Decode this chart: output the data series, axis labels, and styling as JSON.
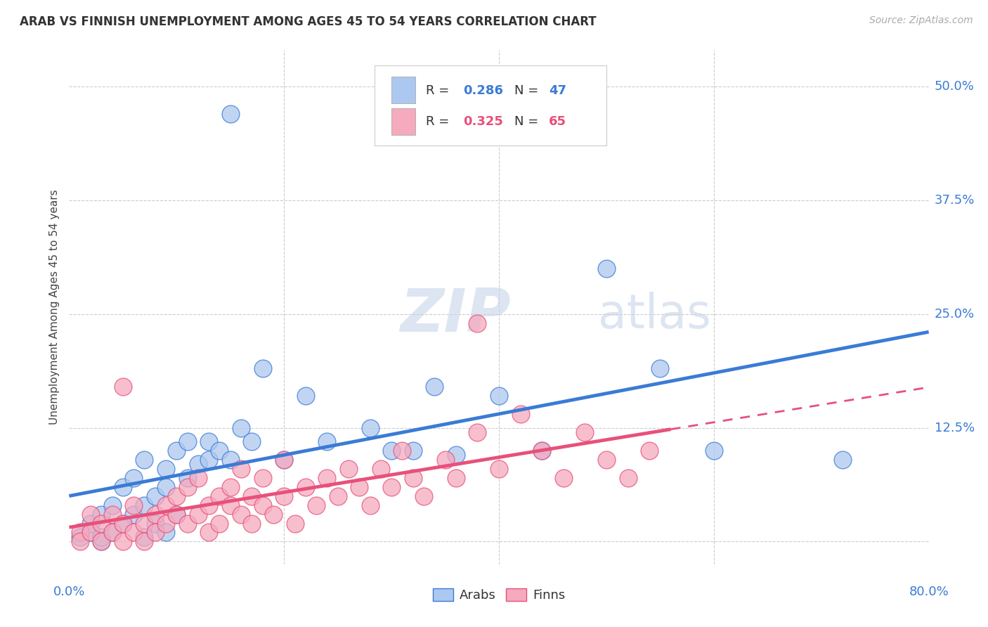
{
  "title": "ARAB VS FINNISH UNEMPLOYMENT AMONG AGES 45 TO 54 YEARS CORRELATION CHART",
  "source": "Source: ZipAtlas.com",
  "ylabel": "Unemployment Among Ages 45 to 54 years",
  "xlim": [
    0.0,
    0.8
  ],
  "ylim": [
    -0.025,
    0.54
  ],
  "arab_R": "0.286",
  "arab_N": "47",
  "finn_R": "0.325",
  "finn_N": "65",
  "arab_color": "#adc8f0",
  "finn_color": "#f5aabe",
  "arab_line_color": "#3a7bd5",
  "finn_line_color": "#e8507a",
  "background_color": "#ffffff",
  "watermark_zip": "ZIP",
  "watermark_atlas": "atlas",
  "arab_points_x": [
    0.01,
    0.02,
    0.02,
    0.03,
    0.03,
    0.03,
    0.04,
    0.04,
    0.05,
    0.05,
    0.06,
    0.06,
    0.07,
    0.07,
    0.07,
    0.08,
    0.08,
    0.09,
    0.09,
    0.09,
    0.1,
    0.1,
    0.11,
    0.11,
    0.12,
    0.13,
    0.13,
    0.14,
    0.15,
    0.16,
    0.17,
    0.18,
    0.2,
    0.22,
    0.24,
    0.28,
    0.3,
    0.32,
    0.34,
    0.36,
    0.4,
    0.44,
    0.5,
    0.55,
    0.6,
    0.72,
    0.15
  ],
  "arab_points_y": [
    0.005,
    0.01,
    0.02,
    0.0,
    0.03,
    0.005,
    0.04,
    0.01,
    0.02,
    0.06,
    0.03,
    0.07,
    0.005,
    0.04,
    0.09,
    0.05,
    0.02,
    0.06,
    0.08,
    0.01,
    0.1,
    0.03,
    0.07,
    0.11,
    0.085,
    0.09,
    0.11,
    0.1,
    0.09,
    0.125,
    0.11,
    0.19,
    0.09,
    0.16,
    0.11,
    0.125,
    0.1,
    0.1,
    0.17,
    0.095,
    0.16,
    0.1,
    0.3,
    0.19,
    0.1,
    0.09,
    0.47
  ],
  "finn_points_x": [
    0.01,
    0.01,
    0.02,
    0.02,
    0.03,
    0.03,
    0.04,
    0.04,
    0.05,
    0.05,
    0.06,
    0.06,
    0.07,
    0.07,
    0.08,
    0.08,
    0.09,
    0.09,
    0.1,
    0.1,
    0.11,
    0.11,
    0.12,
    0.12,
    0.13,
    0.13,
    0.14,
    0.14,
    0.15,
    0.15,
    0.16,
    0.16,
    0.17,
    0.17,
    0.18,
    0.18,
    0.19,
    0.2,
    0.2,
    0.21,
    0.22,
    0.23,
    0.24,
    0.25,
    0.26,
    0.27,
    0.28,
    0.29,
    0.3,
    0.31,
    0.32,
    0.33,
    0.35,
    0.36,
    0.38,
    0.4,
    0.42,
    0.44,
    0.46,
    0.48,
    0.5,
    0.52,
    0.54,
    0.38,
    0.05
  ],
  "finn_points_y": [
    0.01,
    0.0,
    0.01,
    0.03,
    0.02,
    0.0,
    0.01,
    0.03,
    0.0,
    0.02,
    0.01,
    0.04,
    0.02,
    0.0,
    0.03,
    0.01,
    0.04,
    0.02,
    0.03,
    0.05,
    0.02,
    0.06,
    0.03,
    0.07,
    0.04,
    0.01,
    0.05,
    0.02,
    0.04,
    0.06,
    0.03,
    0.08,
    0.05,
    0.02,
    0.04,
    0.07,
    0.03,
    0.09,
    0.05,
    0.02,
    0.06,
    0.04,
    0.07,
    0.05,
    0.08,
    0.06,
    0.04,
    0.08,
    0.06,
    0.1,
    0.07,
    0.05,
    0.09,
    0.07,
    0.12,
    0.08,
    0.14,
    0.1,
    0.07,
    0.12,
    0.09,
    0.07,
    0.1,
    0.24,
    0.17
  ],
  "ytick_vals": [
    0.0,
    0.125,
    0.25,
    0.375,
    0.5
  ],
  "ytick_labels": [
    "",
    "12.5%",
    "25.0%",
    "37.5%",
    "50.0%"
  ],
  "arab_line_start_x": 0.0,
  "arab_line_end_x": 0.8,
  "finn_line_solid_end_x": 0.56,
  "finn_line_dash_end_x": 0.8
}
